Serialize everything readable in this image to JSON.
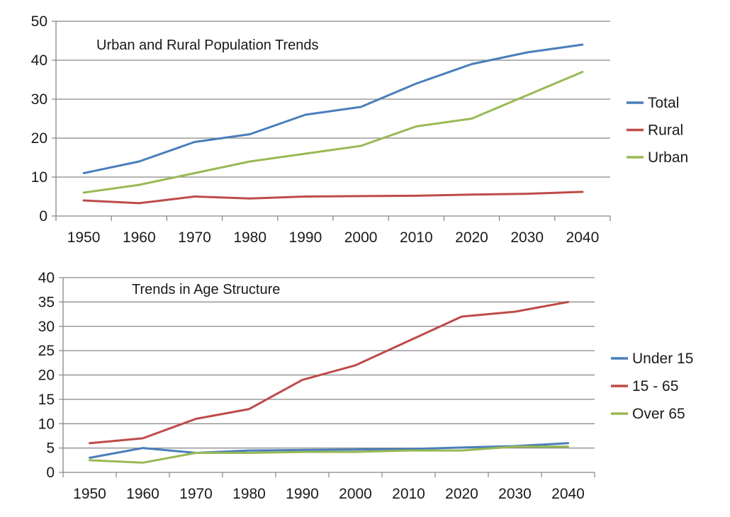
{
  "chart_data": [
    {
      "type": "line",
      "title": "Urban and Rural Population Trends",
      "categories": [
        "1950",
        "1960",
        "1970",
        "1980",
        "1990",
        "2000",
        "2010",
        "2020",
        "2030",
        "2040"
      ],
      "ylim": [
        0,
        50
      ],
      "yticks": [
        0,
        10,
        20,
        30,
        40,
        50
      ],
      "grid": true,
      "legend_position": "right",
      "series": [
        {
          "name": "Total",
          "color": "#4a7ebb",
          "values": [
            11,
            14,
            19,
            21,
            26,
            28,
            34,
            39,
            42,
            44
          ]
        },
        {
          "name": "Rural",
          "color": "#be4b48",
          "values": [
            4,
            3.3,
            5,
            4.5,
            5,
            5.1,
            5.2,
            5.5,
            5.7,
            6.2
          ]
        },
        {
          "name": "Urban",
          "color": "#98b954",
          "values": [
            6,
            8,
            11,
            14,
            16,
            18,
            23,
            25,
            31,
            37
          ]
        }
      ]
    },
    {
      "type": "line",
      "title": "Trends in Age Structure",
      "categories": [
        "1950",
        "1960",
        "1970",
        "1980",
        "1990",
        "2000",
        "2010",
        "2020",
        "2030",
        "2040"
      ],
      "ylim": [
        0,
        40
      ],
      "yticks": [
        0,
        5,
        10,
        15,
        20,
        25,
        30,
        35,
        40
      ],
      "grid": true,
      "legend_position": "right",
      "series": [
        {
          "name": "Under 15",
          "color": "#4a7ebb",
          "values": [
            3,
            5,
            4,
            4.5,
            4.6,
            4.7,
            4.8,
            5.1,
            5.4,
            6
          ]
        },
        {
          "name": "15 - 65",
          "color": "#be4b48",
          "values": [
            6,
            7,
            11,
            13,
            19,
            22,
            27,
            32,
            33,
            35
          ]
        },
        {
          "name": "Over 65",
          "color": "#98b954",
          "values": [
            2.5,
            2,
            4,
            4,
            4.2,
            4.2,
            4.5,
            4.5,
            5.3,
            5.3
          ]
        }
      ]
    }
  ]
}
